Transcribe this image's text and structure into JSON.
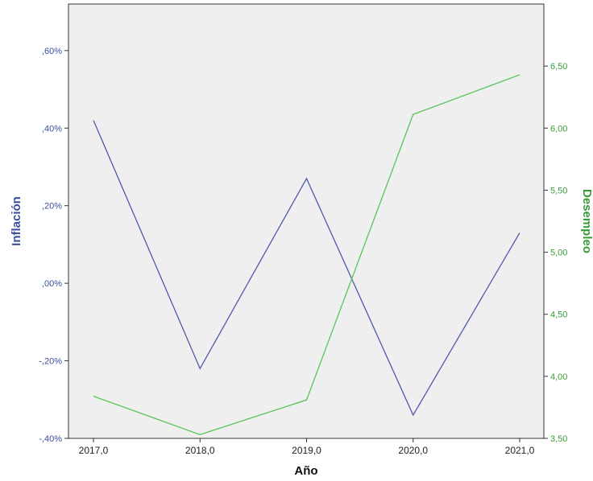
{
  "chart_data": {
    "type": "line",
    "xlabel": "Año",
    "ylabel_left": "Inflación",
    "ylabel_right": "Desempleo",
    "x": [
      2017,
      2018,
      2019,
      2020,
      2021
    ],
    "x_tick_labels": [
      "2017,0",
      "2018,0",
      "2019,0",
      "2020,0",
      "2021,0"
    ],
    "y_left_ticks": [
      -0.4,
      -0.2,
      0.0,
      0.2,
      0.4,
      0.6
    ],
    "y_left_tick_labels": [
      "-,40%",
      "-,20%",
      ",00%",
      ",20%",
      ",40%",
      ",60%"
    ],
    "y_left_lim": [
      -0.4,
      0.72
    ],
    "y_right_ticks": [
      3.5,
      4.0,
      4.5,
      5.0,
      5.5,
      6.0,
      6.5
    ],
    "y_right_tick_labels": [
      "3,50",
      "4,00",
      "4,50",
      "5,00",
      "5,50",
      "6,00",
      "6,50"
    ],
    "y_right_lim": [
      3.5,
      7.0
    ],
    "grid": false,
    "series": [
      {
        "name": "Inflación",
        "axis": "left",
        "color": "#4f5aa8",
        "values": [
          0.42,
          -0.22,
          0.27,
          -0.34,
          0.13
        ]
      },
      {
        "name": "Desempleo",
        "axis": "right",
        "color": "#58c458",
        "values": [
          3.84,
          3.53,
          3.81,
          6.11,
          6.43
        ]
      }
    ],
    "plot_background": "#efefef",
    "left_axis_color": "#3c4e9e",
    "right_axis_color": "#3a9a3a"
  }
}
